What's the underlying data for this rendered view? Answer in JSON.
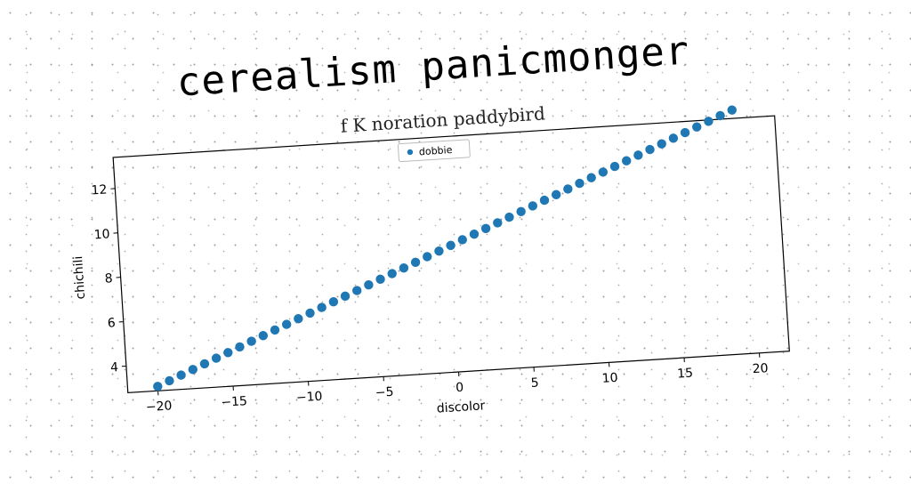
{
  "title": "cerealism panicmonger",
  "chart_data": {
    "type": "scatter",
    "subtitle": "f K noration paddybird",
    "xlabel": "discolor",
    "ylabel": "chichili",
    "xlim": [
      -22,
      22
    ],
    "ylim": [
      2.8,
      13.4
    ],
    "xticks": [
      -20,
      -15,
      -10,
      -5,
      0,
      5,
      10,
      15,
      20
    ],
    "xtick_labels": [
      "−20",
      "−15",
      "−10",
      "−5",
      "0",
      "5",
      "10",
      "15",
      "20"
    ],
    "yticks": [
      4,
      6,
      8,
      10,
      12
    ],
    "ytick_labels": [
      "4",
      "6",
      "8",
      "10",
      "12"
    ],
    "grid": false,
    "legend_position": "top-center",
    "series": [
      {
        "name": "dobbie",
        "color": "#1f77b4",
        "x": [
          -20.0,
          -19.2,
          -18.4,
          -17.6,
          -16.8,
          -16.0,
          -15.2,
          -14.4,
          -13.6,
          -12.8,
          -12.0,
          -11.2,
          -10.4,
          -9.6,
          -8.8,
          -8.0,
          -7.2,
          -6.4,
          -5.6,
          -4.8,
          -4.0,
          -3.2,
          -2.4,
          -1.6,
          -0.8,
          0.0,
          0.8,
          1.6,
          2.4,
          3.2,
          4.0,
          4.8,
          5.6,
          6.4,
          7.2,
          8.0,
          8.8,
          9.6,
          10.4,
          11.2,
          12.0,
          12.8,
          13.6,
          14.4,
          15.2,
          16.0,
          16.8,
          17.6,
          18.4,
          19.2
        ],
        "y": [
          3.0,
          3.22,
          3.44,
          3.66,
          3.88,
          4.1,
          4.32,
          4.54,
          4.76,
          4.98,
          5.2,
          5.42,
          5.64,
          5.86,
          6.08,
          6.3,
          6.52,
          6.74,
          6.96,
          7.18,
          7.4,
          7.62,
          7.84,
          8.06,
          8.28,
          8.5,
          8.72,
          8.94,
          9.16,
          9.38,
          9.6,
          9.82,
          10.04,
          10.26,
          10.48,
          10.7,
          10.92,
          11.14,
          11.36,
          11.58,
          11.8,
          12.02,
          12.24,
          12.46,
          12.68,
          12.9,
          13.12,
          13.34,
          13.56,
          13.78
        ]
      }
    ]
  }
}
